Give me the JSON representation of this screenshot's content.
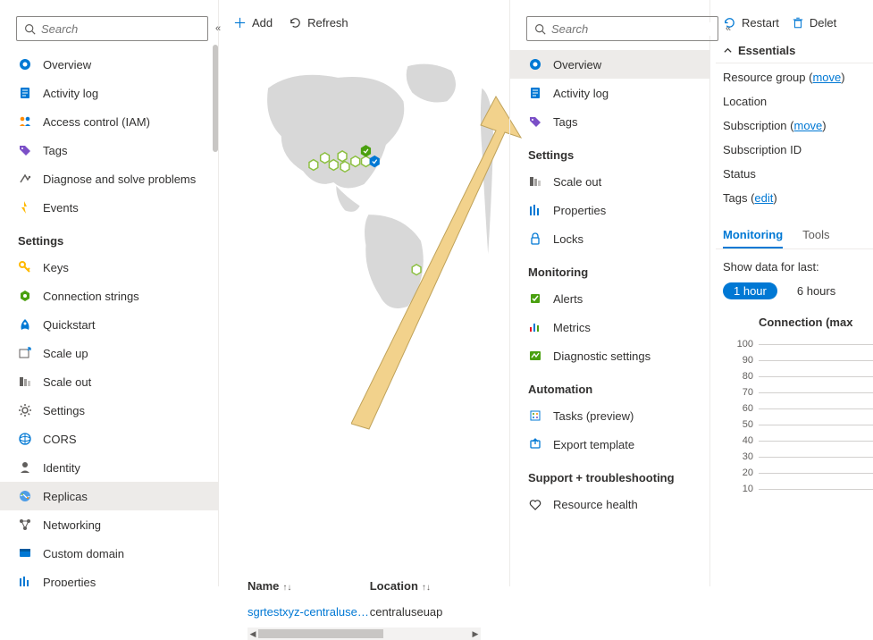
{
  "colors": {
    "accent": "#0078d4",
    "text": "#323130",
    "muted": "#605e5c",
    "border": "#edebe9",
    "selected_bg": "#edebe9",
    "map_land": "#d8d8d8",
    "map_marker_stroke": "#8bbf3f",
    "map_marker_fill": "#ffffff",
    "map_marker_ok_fill": "#4aa00f",
    "map_marker_ok2_fill": "#0078d4",
    "annot_arrow_fill": "#f2d28c",
    "annot_arrow_stroke": "#bfa25a"
  },
  "search_placeholder": "Search",
  "left": {
    "items_top": [
      {
        "icon": "overview",
        "label": "Overview"
      },
      {
        "icon": "activity-log",
        "label": "Activity log"
      },
      {
        "icon": "iam",
        "label": "Access control (IAM)"
      },
      {
        "icon": "tags",
        "label": "Tags"
      },
      {
        "icon": "diagnose",
        "label": "Diagnose and solve problems"
      },
      {
        "icon": "events",
        "label": "Events"
      }
    ],
    "section_settings": "Settings",
    "items_settings": [
      {
        "icon": "keys",
        "label": "Keys"
      },
      {
        "icon": "conn-strings",
        "label": "Connection strings"
      },
      {
        "icon": "quickstart",
        "label": "Quickstart"
      },
      {
        "icon": "scale-up",
        "label": "Scale up"
      },
      {
        "icon": "scale-out",
        "label": "Scale out"
      },
      {
        "icon": "settings",
        "label": "Settings"
      },
      {
        "icon": "cors",
        "label": "CORS"
      },
      {
        "icon": "identity",
        "label": "Identity"
      },
      {
        "icon": "replicas",
        "label": "Replicas",
        "selected": true
      },
      {
        "icon": "networking",
        "label": "Networking"
      },
      {
        "icon": "custom-domain",
        "label": "Custom domain"
      },
      {
        "icon": "properties",
        "label": "Properties"
      }
    ]
  },
  "middle": {
    "toolbar": {
      "add": "Add",
      "refresh": "Refresh"
    },
    "map": {
      "markers": [
        {
          "x": 105,
          "y": 120,
          "state": "empty"
        },
        {
          "x": 92,
          "y": 128,
          "state": "empty"
        },
        {
          "x": 115,
          "y": 128,
          "state": "empty"
        },
        {
          "x": 125,
          "y": 118,
          "state": "empty"
        },
        {
          "x": 128,
          "y": 130,
          "state": "empty"
        },
        {
          "x": 140,
          "y": 124,
          "state": "empty"
        },
        {
          "x": 152,
          "y": 124,
          "state": "empty"
        },
        {
          "x": 152,
          "y": 112,
          "state": "ok-green"
        },
        {
          "x": 162,
          "y": 124,
          "state": "ok-blue"
        },
        {
          "x": 210,
          "y": 248,
          "state": "empty"
        }
      ]
    },
    "table": {
      "col_name": "Name",
      "col_location": "Location",
      "rows": [
        {
          "name": "sgrtestxyz-centraluseu…",
          "location": "centraluseuap"
        }
      ]
    }
  },
  "right": {
    "items_top": [
      {
        "icon": "overview",
        "label": "Overview",
        "selected": true
      },
      {
        "icon": "activity-log",
        "label": "Activity log"
      },
      {
        "icon": "tags",
        "label": "Tags"
      }
    ],
    "section_settings": "Settings",
    "items_settings": [
      {
        "icon": "scale-out",
        "label": "Scale out"
      },
      {
        "icon": "properties",
        "label": "Properties"
      },
      {
        "icon": "locks",
        "label": "Locks"
      }
    ],
    "section_monitoring": "Monitoring",
    "items_monitoring": [
      {
        "icon": "alerts",
        "label": "Alerts"
      },
      {
        "icon": "metrics",
        "label": "Metrics"
      },
      {
        "icon": "diag-settings",
        "label": "Diagnostic settings"
      }
    ],
    "section_automation": "Automation",
    "items_automation": [
      {
        "icon": "tasks",
        "label": "Tasks (preview)"
      },
      {
        "icon": "export-template",
        "label": "Export template"
      }
    ],
    "section_support": "Support + troubleshooting",
    "items_support": [
      {
        "icon": "resource-health",
        "label": "Resource health"
      }
    ]
  },
  "far": {
    "toolbar": {
      "restart": "Restart",
      "delete": "Delet"
    },
    "essentials_header": "Essentials",
    "kv": [
      {
        "label": "Resource group",
        "link": "move"
      },
      {
        "label": "Location"
      },
      {
        "label": "Subscription",
        "link": "move"
      },
      {
        "label": "Subscription ID"
      },
      {
        "label": "Status"
      },
      {
        "label": "Tags",
        "link": "edit"
      }
    ],
    "tabs": {
      "monitoring": "Monitoring",
      "tools": "Tools"
    },
    "show_data_label": "Show data for last:",
    "pills": {
      "h1": "1 hour",
      "h6": "6 hours"
    },
    "chart": {
      "title": "Connection (max",
      "yticks": [
        100,
        90,
        80,
        70,
        60,
        50,
        40,
        30,
        20,
        10
      ]
    }
  }
}
